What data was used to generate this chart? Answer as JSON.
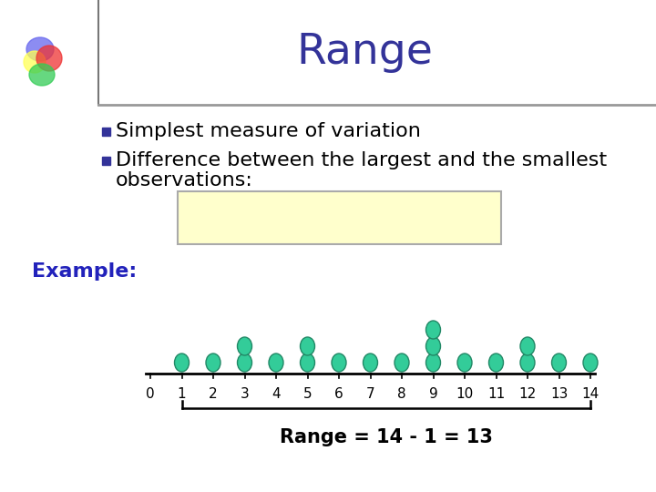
{
  "title": "Range",
  "title_color": "#333399",
  "title_fontsize": 34,
  "background_color": "#FFFFFF",
  "bullet_color": "#333399",
  "bullet1": "Simplest measure of variation",
  "bullet2": "Difference between the largest and the smallest",
  "bullet3": "observations:",
  "bullet_fontsize": 16,
  "formula_box_color": "#FFFFCC",
  "formula_box_edge": "#AAAAAA",
  "example_label": "Example:",
  "example_color": "#2222BB",
  "dot_color": "#33CC99",
  "dot_data": [
    1,
    2,
    3,
    3,
    4,
    5,
    5,
    6,
    7,
    8,
    9,
    9,
    9,
    10,
    11,
    12,
    12,
    13,
    14
  ],
  "axis_min": 0,
  "axis_max": 14,
  "range_label": "Range = 14 - 1 = 13",
  "venn_colors": [
    "#6666EE",
    "#FFFF55",
    "#EE3333",
    "#33CC55"
  ],
  "venn_alphas": [
    0.75,
    0.75,
    0.75,
    0.75
  ]
}
